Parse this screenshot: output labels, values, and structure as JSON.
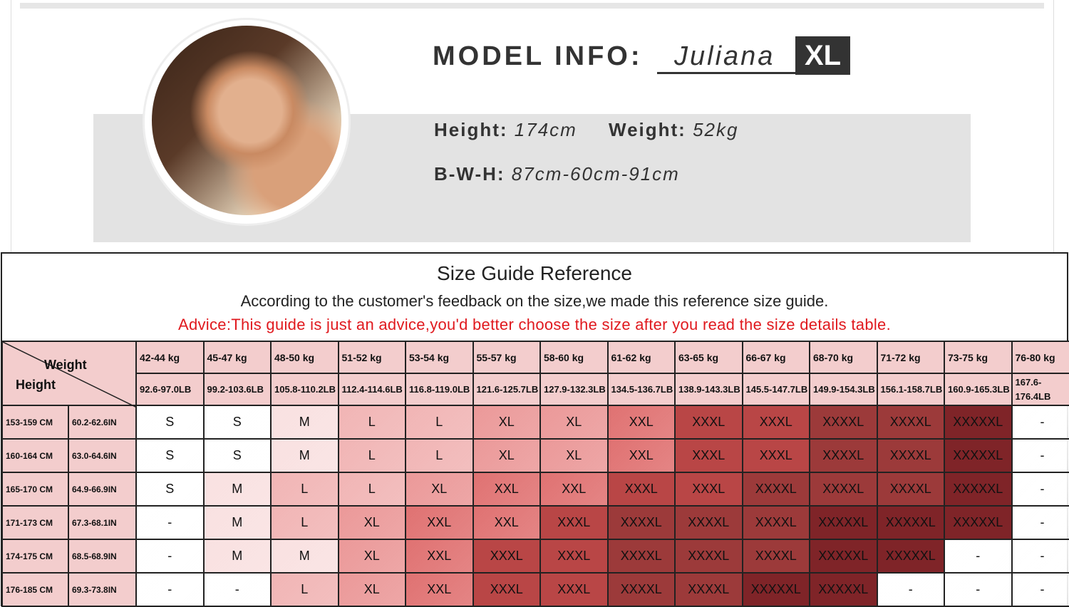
{
  "model": {
    "title": "MODEL INFO:",
    "name": "Juliana",
    "size_badge": "XL",
    "height_label": "Height:",
    "height_value": "174cm",
    "weight_label": "Weight:",
    "weight_value": "52kg",
    "bwh_label": "B-W-H:",
    "bwh_value": "87cm-60cm-91cm"
  },
  "guide": {
    "title": "Size Guide Reference",
    "subtitle": "According to the customer's feedback on the size,we made this reference size guide.",
    "advice": "Advice:This guide is just an advice,you'd better choose the size after you read the size details table.",
    "corner_weight": "Weight",
    "corner_height": "Height",
    "weights_kg": [
      "42-44 kg",
      "45-47 kg",
      "48-50 kg",
      "51-52 kg",
      "53-54 kg",
      "55-57 kg",
      "58-60 kg",
      "61-62 kg",
      "63-65 kg",
      "66-67 kg",
      "68-70 kg",
      "71-72 kg",
      "73-75 kg",
      "76-80 kg"
    ],
    "weights_lb": [
      "92.6-97.0LB",
      "99.2-103.6LB",
      "105.8-110.2LB",
      "112.4-114.6LB",
      "116.8-119.0LB",
      "121.6-125.7LB",
      "127.9-132.3LB",
      "134.5-136.7LB",
      "138.9-143.3LB",
      "145.5-147.7LB",
      "149.9-154.3LB",
      "156.1-158.7LB",
      "160.9-165.3LB",
      "167.6-176.4LB"
    ],
    "rows": [
      {
        "cm": "153-159 CM",
        "in": "60.2-62.6IN",
        "sizes": [
          "S",
          "S",
          "M",
          "L",
          "L",
          "XL",
          "XL",
          "XXL",
          "XXXL",
          "XXXL",
          "XXXXL",
          "XXXXL",
          "XXXXXL",
          "-"
        ]
      },
      {
        "cm": "160-164 CM",
        "in": "63.0-64.6IN",
        "sizes": [
          "S",
          "S",
          "M",
          "L",
          "L",
          "XL",
          "XL",
          "XXL",
          "XXXL",
          "XXXL",
          "XXXXL",
          "XXXXL",
          "XXXXXL",
          "-"
        ]
      },
      {
        "cm": "165-170 CM",
        "in": "64.9-66.9IN",
        "sizes": [
          "S",
          "M",
          "L",
          "L",
          "XL",
          "XXL",
          "XXL",
          "XXXL",
          "XXXL",
          "XXXXL",
          "XXXXL",
          "XXXXL",
          "XXXXXL",
          "-"
        ]
      },
      {
        "cm": "171-173 CM",
        "in": "67.3-68.1IN",
        "sizes": [
          "-",
          "M",
          "L",
          "XL",
          "XXL",
          "XXL",
          "XXXL",
          "XXXXL",
          "XXXXL",
          "XXXXL",
          "XXXXXL",
          "XXXXXL",
          "XXXXXL",
          "-"
        ]
      },
      {
        "cm": "174-175 CM",
        "in": "68.5-68.9IN",
        "sizes": [
          "-",
          "M",
          "M",
          "XL",
          "XXL",
          "XXXL",
          "XXXL",
          "XXXXL",
          "XXXXL",
          "XXXXL",
          "XXXXXL",
          "XXXXXL",
          "-",
          "-"
        ]
      },
      {
        "cm": "176-185 CM",
        "in": "69.3-73.8IN",
        "sizes": [
          "-",
          "-",
          "L",
          "XL",
          "XXL",
          "XXXL",
          "XXXL",
          "XXXXL",
          "XXXXL",
          "XXXXXL",
          "XXXXXL",
          "-",
          "-",
          "-"
        ]
      }
    ]
  },
  "colors": {
    "advice": "#e0191e",
    "header": "#f3cdcd",
    "-": "#ffffff",
    "S": "#ffffff",
    "M": "#f9e1e1",
    "L": "#f1b5b5",
    "XL": "#eb9999",
    "XXL": "#e07272",
    "XXXL": "#b94646",
    "XXXXL": "#9c3a3a",
    "XXXXXL": "#7f2428"
  }
}
